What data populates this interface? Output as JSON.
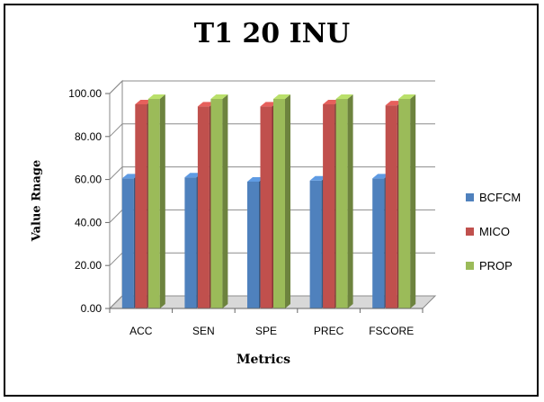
{
  "chart_data": {
    "type": "bar",
    "title": "T1 20 INU",
    "xlabel": "Metrics",
    "ylabel": "Value Rnage",
    "categories": [
      "ACC",
      "SEN",
      "SPE",
      "PREC",
      "FSCORE"
    ],
    "ylim": [
      0,
      100
    ],
    "yticks": [
      "0.00",
      "20.00",
      "40.00",
      "60.00",
      "80.00",
      "100.00"
    ],
    "grid": true,
    "legend_position": "right",
    "series": [
      {
        "name": "BCFCM",
        "values": [
          60.5,
          61.0,
          59.0,
          59.5,
          60.5
        ],
        "color": "#4F81BD"
      },
      {
        "name": "MICO",
        "values": [
          95.0,
          94.0,
          94.0,
          95.0,
          94.5
        ],
        "color": "#C0504D"
      },
      {
        "name": "PROP",
        "values": [
          97.5,
          97.5,
          97.5,
          97.5,
          97.5
        ],
        "color": "#9BBB59"
      }
    ]
  }
}
